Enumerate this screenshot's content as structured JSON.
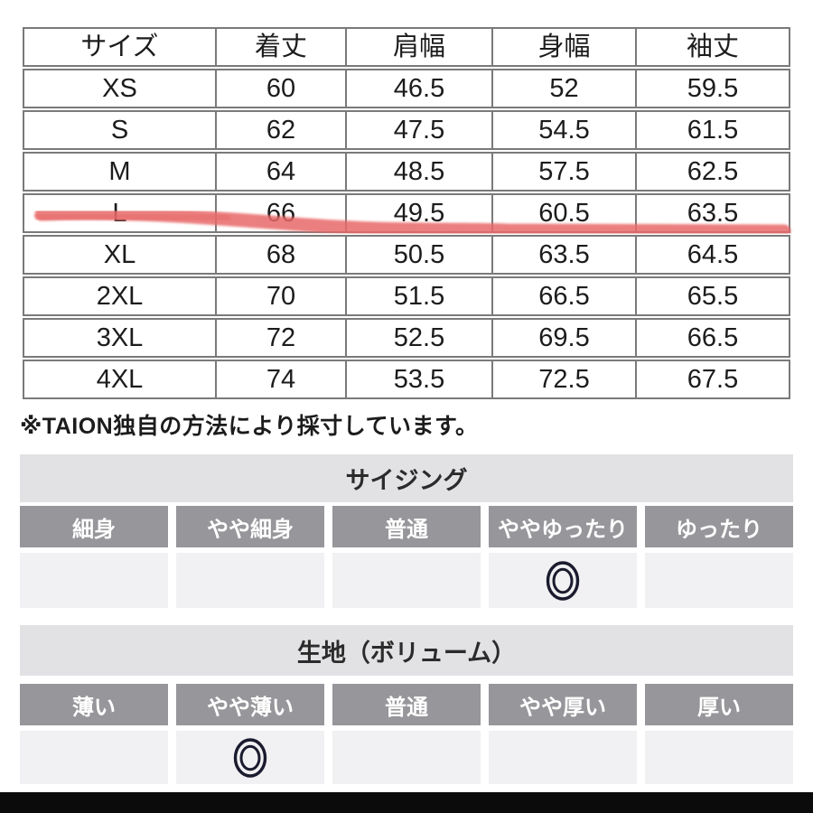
{
  "size_table": {
    "columns": [
      "サイズ",
      "着丈",
      "肩幅",
      "身幅",
      "袖丈"
    ],
    "rows": [
      {
        "size": "XS",
        "values": [
          "60",
          "46.5",
          "52",
          "59.5"
        ],
        "highlighted": false
      },
      {
        "size": "S",
        "values": [
          "62",
          "47.5",
          "54.5",
          "61.5"
        ],
        "highlighted": false
      },
      {
        "size": "M",
        "values": [
          "64",
          "48.5",
          "57.5",
          "62.5"
        ],
        "highlighted": false
      },
      {
        "size": "L",
        "values": [
          "66",
          "49.5",
          "60.5",
          "63.5"
        ],
        "highlighted": true
      },
      {
        "size": "XL",
        "values": [
          "68",
          "50.5",
          "63.5",
          "64.5"
        ],
        "highlighted": false
      },
      {
        "size": "2XL",
        "values": [
          "70",
          "51.5",
          "66.5",
          "65.5"
        ],
        "highlighted": false
      },
      {
        "size": "3XL",
        "values": [
          "72",
          "52.5",
          "69.5",
          "66.5"
        ],
        "highlighted": false
      },
      {
        "size": "4XL",
        "values": [
          "74",
          "53.5",
          "72.5",
          "67.5"
        ],
        "highlighted": false
      }
    ],
    "highlight_color": "#e86868"
  },
  "note": "※TAION独自の方法により採寸しています。",
  "sizing_section": {
    "title": "サイジング",
    "options": [
      "細身",
      "やや細身",
      "普通",
      "ややゆったり",
      "ゆったり"
    ],
    "selected_index": 3,
    "mark": "double-circle"
  },
  "fabric_section": {
    "title": "生地（ボリューム）",
    "options": [
      "薄い",
      "やや薄い",
      "普通",
      "やや厚い",
      "厚い"
    ],
    "selected_index": 1,
    "mark": "double-circle"
  },
  "colors": {
    "table_border": "#7a7a7a",
    "band_bg": "#e2e1e3",
    "option_label_bg": "#97969a",
    "option_cell_bg": "#f1f0f2",
    "mark_color": "#1b1b2f",
    "text": "#1c1c1c",
    "bottom_bar": "#0b0b0b"
  }
}
